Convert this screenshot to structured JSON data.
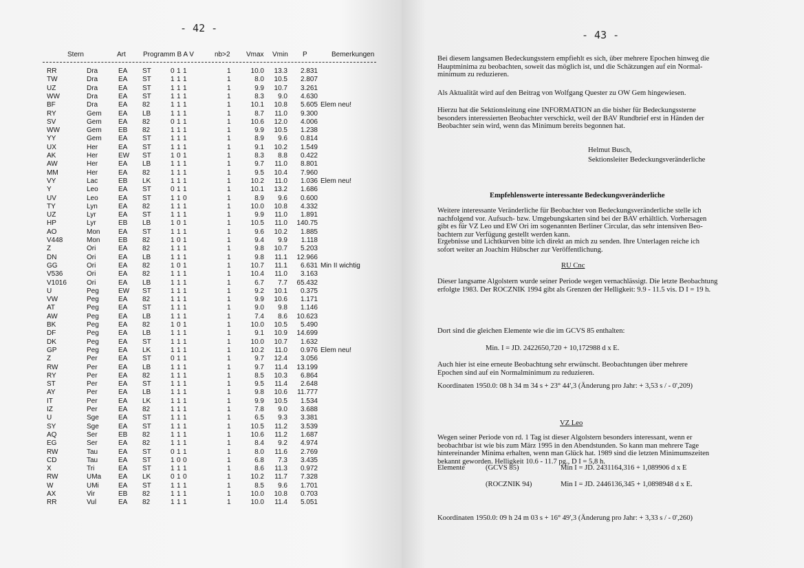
{
  "left_page": {
    "page_number": "- 42 -",
    "headers": [
      "Stern",
      "Art",
      "Programm B  A  V",
      "nb>2",
      "Vmax",
      "Vmin",
      "P",
      "Bemerkungen"
    ],
    "rows": [
      [
        "RR",
        "Dra",
        "EA",
        "ST",
        "0",
        "1",
        "1",
        "1",
        "10.0",
        "13.3",
        "2.831",
        ""
      ],
      [
        "TW",
        "Dra",
        "EA",
        "ST",
        "1",
        "1",
        "1",
        "1",
        "8.0",
        "10.5",
        "2.807",
        ""
      ],
      [
        "UZ",
        "Dra",
        "EA",
        "ST",
        "1",
        "1",
        "1",
        "1",
        "9.9",
        "10.7",
        "3.261",
        ""
      ],
      [
        "WW",
        "Dra",
        "EA",
        "ST",
        "1",
        "1",
        "1",
        "1",
        "8.3",
        "9.0",
        "4.630",
        ""
      ],
      [
        "BF",
        "Dra",
        "EA",
        "82",
        "1",
        "1",
        "1",
        "1",
        "10.1",
        "10.8",
        "5.605",
        "Elem neu!"
      ],
      [
        "RY",
        "Gem",
        "EA",
        "LB",
        "1",
        "1",
        "1",
        "1",
        "8.7",
        "11.0",
        "9.300",
        ""
      ],
      [
        "SV",
        "Gem",
        "EA",
        "82",
        "0",
        "1",
        "1",
        "1",
        "10.6",
        "12.0",
        "4.006",
        ""
      ],
      [
        "WW",
        "Gem",
        "EB",
        "82",
        "1",
        "1",
        "1",
        "1",
        "9.9",
        "10.5",
        "1.238",
        ""
      ],
      [
        "YY",
        "Gem",
        "EA",
        "ST",
        "1",
        "1",
        "1",
        "1",
        "8.9",
        "9.6",
        "0.814",
        ""
      ],
      [
        "UX",
        "Her",
        "EA",
        "ST",
        "1",
        "1",
        "1",
        "1",
        "9.1",
        "10.2",
        "1.549",
        ""
      ],
      [
        "AK",
        "Her",
        "EW",
        "ST",
        "1",
        "0",
        "1",
        "1",
        "8.3",
        "8.8",
        "0.422",
        ""
      ],
      [
        "AW",
        "Her",
        "EA",
        "LB",
        "1",
        "1",
        "1",
        "1",
        "9.7",
        "11.0",
        "8.801",
        ""
      ],
      [
        "MM",
        "Her",
        "EA",
        "82",
        "1",
        "1",
        "1",
        "1",
        "9.5",
        "10.4",
        "7.960",
        ""
      ],
      [
        "VY",
        "Lac",
        "EB",
        "LK",
        "1",
        "1",
        "1",
        "1",
        "10.2",
        "11.0",
        "1.036",
        "Elem neu!"
      ],
      [
        "Y",
        "Leo",
        "EA",
        "ST",
        "0",
        "1",
        "1",
        "1",
        "10.1",
        "13.2",
        "1.686",
        ""
      ],
      [
        "UV",
        "Leo",
        "EA",
        "ST",
        "1",
        "1",
        "0",
        "1",
        "8.9",
        "9.6",
        "0.600",
        ""
      ],
      [
        "TY",
        "Lyn",
        "EA",
        "82",
        "1",
        "1",
        "1",
        "1",
        "10.0",
        "10.8",
        "4.332",
        ""
      ],
      [
        "UZ",
        "Lyr",
        "EA",
        "ST",
        "1",
        "1",
        "1",
        "1",
        "9.9",
        "11.0",
        "1.891",
        ""
      ],
      [
        "HP",
        "Lyr",
        "EB",
        "LB",
        "1",
        "0",
        "1",
        "1",
        "10.5",
        "11.0",
        "140.75",
        ""
      ],
      [
        "AO",
        "Mon",
        "EA",
        "ST",
        "1",
        "1",
        "1",
        "1",
        "9.6",
        "10.2",
        "1.885",
        ""
      ],
      [
        "V448",
        "Mon",
        "EB",
        "82",
        "1",
        "0",
        "1",
        "1",
        "9.4",
        "9.9",
        "1.118",
        ""
      ],
      [
        "Z",
        "Ori",
        "EA",
        "82",
        "1",
        "1",
        "1",
        "1",
        "9.8",
        "10.7",
        "5.203",
        ""
      ],
      [
        "DN",
        "Ori",
        "EA",
        "LB",
        "1",
        "1",
        "1",
        "1",
        "9.8",
        "11.1",
        "12.966",
        ""
      ],
      [
        "GG",
        "Ori",
        "EA",
        "82",
        "1",
        "0",
        "1",
        "1",
        "10.7",
        "11.1",
        "6.631",
        "Min II wichtig"
      ],
      [
        "V536",
        "Ori",
        "EA",
        "82",
        "1",
        "1",
        "1",
        "1",
        "10.4",
        "11.0",
        "3.163",
        ""
      ],
      [
        "V1016",
        "Ori",
        "EA",
        "LB",
        "1",
        "1",
        "1",
        "1",
        "6.7",
        "7.7",
        "65.432",
        ""
      ],
      [
        "U",
        "Peg",
        "EW",
        "ST",
        "1",
        "1",
        "1",
        "1",
        "9.2",
        "10.1",
        "0.375",
        ""
      ],
      [
        "VW",
        "Peg",
        "EA",
        "82",
        "1",
        "1",
        "1",
        "1",
        "9.9",
        "10.6",
        "1.171",
        ""
      ],
      [
        "AT",
        "Peg",
        "EA",
        "ST",
        "1",
        "1",
        "1",
        "1",
        "9.0",
        "9.8",
        "1.146",
        ""
      ],
      [
        "AW",
        "Peg",
        "EA",
        "LB",
        "1",
        "1",
        "1",
        "1",
        "7.4",
        "8.6",
        "10.623",
        ""
      ],
      [
        "BK",
        "Peg",
        "EA",
        "82",
        "1",
        "0",
        "1",
        "1",
        "10.0",
        "10.5",
        "5.490",
        ""
      ],
      [
        "DF",
        "Peg",
        "EA",
        "LB",
        "1",
        "1",
        "1",
        "1",
        "9.1",
        "10.9",
        "14.699",
        ""
      ],
      [
        "DK",
        "Peg",
        "EA",
        "ST",
        "1",
        "1",
        "1",
        "1",
        "10.0",
        "10.7",
        "1.632",
        ""
      ],
      [
        "GP",
        "Peg",
        "EA",
        "LK",
        "1",
        "1",
        "1",
        "1",
        "10.2",
        "11.0",
        "0.976",
        "Elem neu!"
      ],
      [
        "Z",
        "Per",
        "EA",
        "ST",
        "0",
        "1",
        "1",
        "1",
        "9.7",
        "12.4",
        "3.056",
        ""
      ],
      [
        "RW",
        "Per",
        "EA",
        "LB",
        "1",
        "1",
        "1",
        "1",
        "9.7",
        "11.4",
        "13.199",
        ""
      ],
      [
        "RY",
        "Per",
        "EA",
        "82",
        "1",
        "1",
        "1",
        "1",
        "8.5",
        "10.3",
        "6.864",
        ""
      ],
      [
        "ST",
        "Per",
        "EA",
        "ST",
        "1",
        "1",
        "1",
        "1",
        "9.5",
        "11.4",
        "2.648",
        ""
      ],
      [
        "AY",
        "Per",
        "EA",
        "LB",
        "1",
        "1",
        "1",
        "1",
        "9.8",
        "10.6",
        "11.777",
        ""
      ],
      [
        "IT",
        "Per",
        "EA",
        "LK",
        "1",
        "1",
        "1",
        "1",
        "9.9",
        "10.5",
        "1.534",
        ""
      ],
      [
        "IZ",
        "Per",
        "EA",
        "82",
        "1",
        "1",
        "1",
        "1",
        "7.8",
        "9.0",
        "3.688",
        ""
      ],
      [
        "U",
        "Sge",
        "EA",
        "ST",
        "1",
        "1",
        "1",
        "1",
        "6.5",
        "9.3",
        "3.381",
        ""
      ],
      [
        "SY",
        "Sge",
        "EA",
        "ST",
        "1",
        "1",
        "1",
        "1",
        "10.5",
        "11.2",
        "3.539",
        ""
      ],
      [
        "AQ",
        "Ser",
        "EB",
        "82",
        "1",
        "1",
        "1",
        "1",
        "10.6",
        "11.2",
        "1.687",
        ""
      ],
      [
        "EG",
        "Ser",
        "EA",
        "82",
        "1",
        "1",
        "1",
        "1",
        "8.4",
        "9.2",
        "4.974",
        ""
      ],
      [
        "RW",
        "Tau",
        "EA",
        "ST",
        "0",
        "1",
        "1",
        "1",
        "8.0",
        "11.6",
        "2.769",
        ""
      ],
      [
        "CD",
        "Tau",
        "EA",
        "ST",
        "1",
        "0",
        "0",
        "1",
        "6.8",
        "7.3",
        "3.435",
        ""
      ],
      [
        "X",
        "Tri",
        "EA",
        "ST",
        "1",
        "1",
        "1",
        "1",
        "8.6",
        "11.3",
        "0.972",
        ""
      ],
      [
        "RW",
        "UMa",
        "EA",
        "LK",
        "0",
        "1",
        "0",
        "1",
        "10.2",
        "11.7",
        "7.328",
        ""
      ],
      [
        "W",
        "UMi",
        "EA",
        "ST",
        "1",
        "1",
        "1",
        "1",
        "8.5",
        "9.6",
        "1.701",
        ""
      ],
      [
        "AX",
        "Vir",
        "EB",
        "82",
        "1",
        "1",
        "1",
        "1",
        "10.0",
        "10.8",
        "0.703",
        ""
      ],
      [
        "RR",
        "Vul",
        "EA",
        "82",
        "1",
        "1",
        "1",
        "1",
        "10.0",
        "11.4",
        "5.051",
        ""
      ]
    ]
  },
  "right_page": {
    "page_number": "- 43 -",
    "p1": [
      "Bei diesem langsamen Bedeckungsstern empfiehlt es sich, über mehrere Epochen hinweg die",
      "Hauptminima zu  beobachten, soweit das möglich ist, und die Schätzungen auf ein Normal-",
      "minimum zu reduzieren."
    ],
    "p2": [
      "Als Aktualität wird auf den Beitrag von Wolfgang Quester zu OW Gem hingewiesen."
    ],
    "p3": [
      "Hierzu hat die Sektionsleitung eine INFORMATION an die bisher für Bedeckungssterne",
      "besonders interessierten Beobachter verschickt, weil der BAV Rundbrief erst in Händen der",
      "Beobachter sein wird, wenn das Minimum bereits begonnen hat."
    ],
    "signature": [
      "Helmut Busch,",
      "Sektionsleiter Bedeckungsveränderliche"
    ],
    "heading": "Empfehlenswerte interessante Bedeckungsveränderliche",
    "p4": [
      "Weitere interessante Veränderliche für Beobachter von Bedeckungsveränderliche stelle ich",
      "nachfolgend vor. Aufsuch- bzw. Umgebungskarten sind bei der BAV  erhältlich. Vorhersagen",
      "gibt es für VZ Leo und EW Ori im sogenannten Berliner Circular, das sehr intensiven Beo-",
      "bachtern zur Verfügung gestellt werden kann."
    ],
    "p5": [
      "Ergebnisse und Lichtkurven bitte ich direkt an mich zu senden. Ihre Unterlagen reiche ich",
      "sofort weiter an Joachim Hübscher zur Veröffentlichung."
    ],
    "ru_cnc": {
      "title": "RU Cnc",
      "p1": [
        "Dieser langsame Algolstern wurde seiner Periode wegen vernachlässigt. Die letzte Beobachtung",
        "erfolgte 1983. Der ROCZNIK 1994 gibt als Grenzen der Helligkeit: 9.9 - 11.5 vis. D I = 19 h."
      ],
      "p2": "Dort sind die gleichen Elemente wie die im GCVS 85 enthalten:",
      "formula": "Min. I = JD. 2422650,720 + 10,172988 d  x  E.",
      "p3": [
        "Auch hier ist eine erneute Beobachtung sehr erwünscht. Beobachtungen über mehrere",
        "Epochen sind auf ein Normalminimum zu reduzieren."
      ],
      "coords": "Koordinaten 1950.0:   08 h 34 m 34 s  + 23° 44',3   (Änderung pro Jahr: + 3,53 s /  - 0',209)"
    },
    "vz_leo": {
      "title": "VZ Leo",
      "p1": [
        "Wegen seiner Periode von rd. 1 Tag ist dieser Algolstern besonders interessant, wenn er",
        "beobachtbar ist wie bis zum März 1995 in den Abendstunden. So kann man mehrere Tage",
        "hintereinander Minima erhalten, wenn man Glück hat. 1989 sind die letzten Minimumszeiten",
        "bekannt geworden. Helligkeit 10.6 - 11.7 pg., D I = 5,8 h."
      ],
      "elements_label": "Elemente",
      "source1": "(GCVS 85)",
      "formula1": "Min I = JD. 2431164,316 + 1,089906 d   x  E",
      "source2": "(ROCZNIK 94)",
      "formula2": "Min I =  JD. 2446136,345  + 1,0898948 d  x  E.",
      "coords": "Koordinaten 1950.0:   09 h 24 m 03 s   + 16° 49',3   (Änderung pro Jahr: + 3,33 s /  - 0',260)"
    }
  }
}
